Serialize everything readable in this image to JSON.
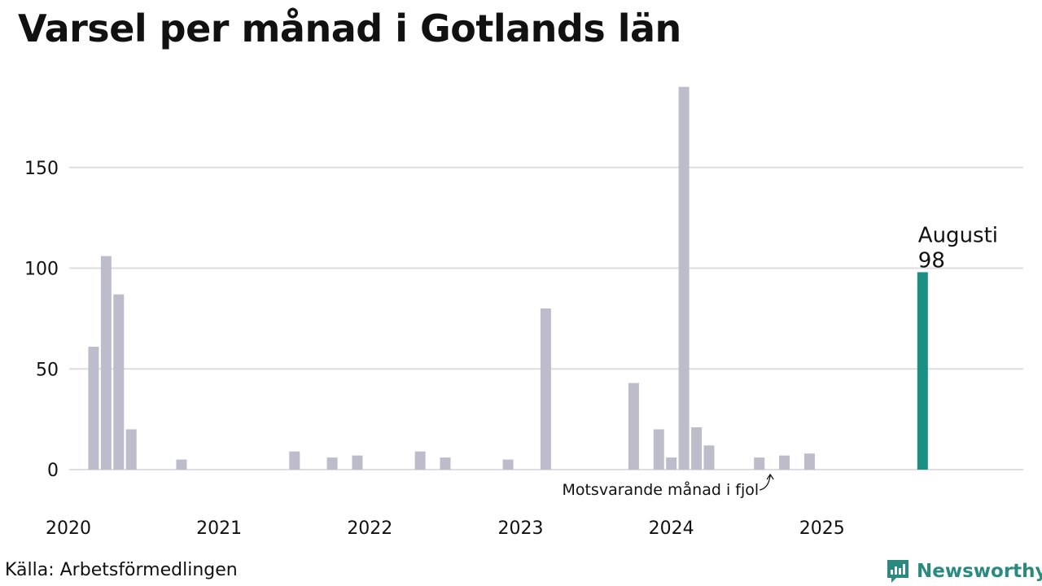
{
  "chart_data": {
    "type": "bar",
    "title": "Varsel per månad i Gotlands län",
    "xlabel": "",
    "ylabel": "",
    "x_start": "2020-01",
    "x_end": "2025-12",
    "ylim": [
      0,
      190
    ],
    "yticks": [
      0,
      50,
      100,
      150
    ],
    "xticks": [
      {
        "label": "2020",
        "month": "2020-01"
      },
      {
        "label": "2021",
        "month": "2021-01"
      },
      {
        "label": "2022",
        "month": "2022-01"
      },
      {
        "label": "2023",
        "month": "2023-01"
      },
      {
        "label": "2024",
        "month": "2024-01"
      },
      {
        "label": "2025",
        "month": "2025-01"
      }
    ],
    "grid": true,
    "bars": [
      {
        "month": "2020-02",
        "value": 61
      },
      {
        "month": "2020-03",
        "value": 106
      },
      {
        "month": "2020-04",
        "value": 87
      },
      {
        "month": "2020-05",
        "value": 20
      },
      {
        "month": "2020-09",
        "value": 5
      },
      {
        "month": "2021-06",
        "value": 9
      },
      {
        "month": "2021-09",
        "value": 6
      },
      {
        "month": "2021-11",
        "value": 7
      },
      {
        "month": "2022-04",
        "value": 9
      },
      {
        "month": "2022-06",
        "value": 6
      },
      {
        "month": "2022-11",
        "value": 5
      },
      {
        "month": "2023-02",
        "value": 80
      },
      {
        "month": "2023-09",
        "value": 43
      },
      {
        "month": "2023-11",
        "value": 20
      },
      {
        "month": "2023-12",
        "value": 6
      },
      {
        "month": "2024-01",
        "value": 190
      },
      {
        "month": "2024-02",
        "value": 21
      },
      {
        "month": "2024-03",
        "value": 12
      },
      {
        "month": "2024-07",
        "value": 6
      },
      {
        "month": "2024-09",
        "value": 7
      },
      {
        "month": "2024-11",
        "value": 8
      },
      {
        "month": "2025-08",
        "value": 98,
        "highlight": true
      }
    ],
    "highlight_label": {
      "month_name": "Augusti",
      "value_text": "98"
    },
    "annotation": {
      "text": "Motsvarande månad i fjol",
      "month": "2024-08"
    }
  },
  "colors": {
    "bar": "#bdbccb",
    "highlight": "#1a8f84",
    "grid": "#dedee2",
    "brand": "#2a8a80"
  },
  "footer": {
    "source": "Källa: Arbetsförmedlingen",
    "brand_name": "Newsworthy",
    "brand_icon": "newsworthy-logo-icon"
  }
}
